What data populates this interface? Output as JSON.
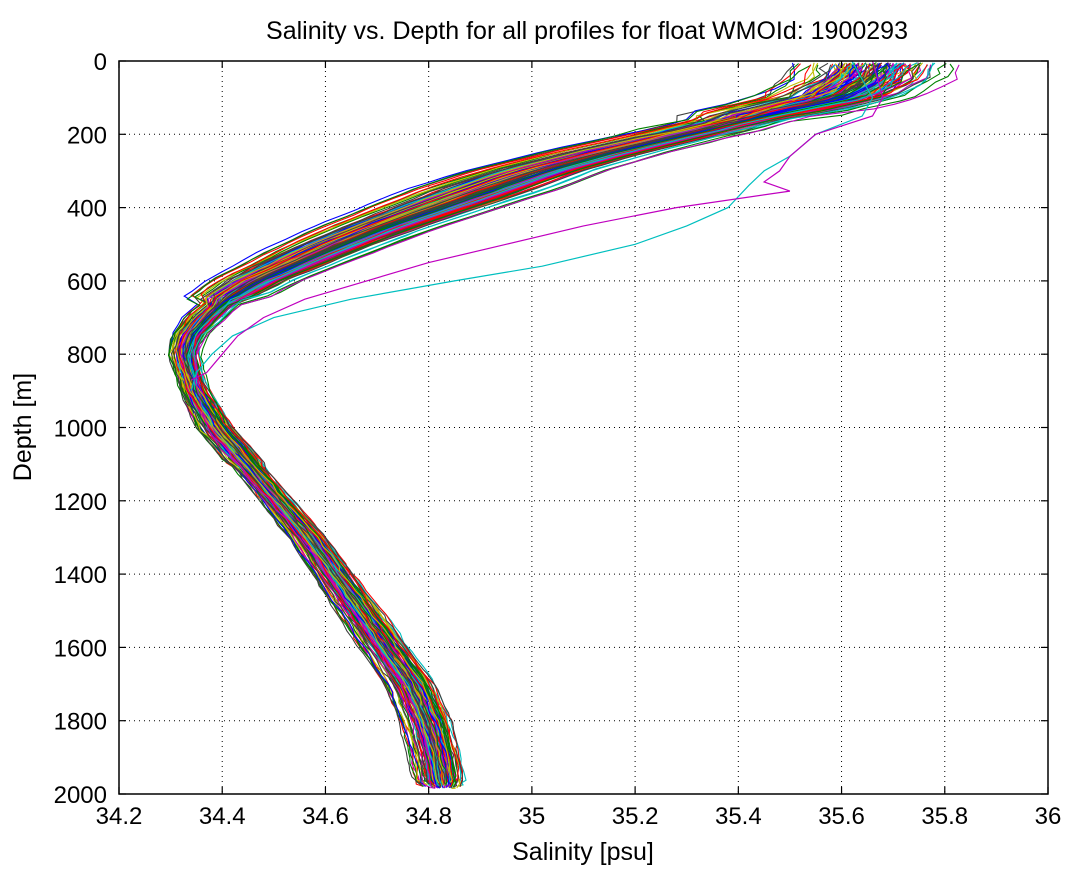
{
  "chart_data": {
    "type": "line",
    "title": "Salinity vs. Depth for all profiles for float WMOId: 1900293",
    "xlabel": "Salinity [psu]",
    "ylabel": "Depth [m]",
    "xlim": [
      34.2,
      36
    ],
    "ylim": [
      0,
      2000
    ],
    "y_reversed": true,
    "grid": true,
    "grid_style": "dotted",
    "x_ticks": [
      "34.2",
      "34.4",
      "34.6",
      "34.8",
      "35",
      "35.2",
      "35.4",
      "35.6",
      "35.8",
      "36"
    ],
    "y_ticks": [
      "0",
      "200",
      "400",
      "600",
      "800",
      "1000",
      "1200",
      "1400",
      "1600",
      "1800",
      "2000"
    ],
    "series_colors": [
      "#0000ff",
      "#008000",
      "#ff0000",
      "#00bfbf",
      "#bf00bf",
      "#bfbf00",
      "#404040"
    ],
    "profile_count": 140,
    "mean_profile": {
      "depth": [
        0,
        50,
        100,
        150,
        200,
        250,
        300,
        350,
        400,
        450,
        500,
        550,
        600,
        650,
        700,
        750,
        800,
        850,
        900,
        950,
        1000,
        1100,
        1200,
        1300,
        1400,
        1500,
        1600,
        1700,
        1800,
        1900,
        1980
      ],
      "salinity": [
        35.68,
        35.66,
        35.6,
        35.45,
        35.3,
        35.15,
        35.02,
        34.92,
        34.82,
        34.72,
        34.63,
        34.55,
        34.47,
        34.41,
        34.37,
        34.34,
        34.33,
        34.34,
        34.35,
        34.37,
        34.39,
        34.45,
        34.51,
        34.57,
        34.62,
        34.67,
        34.72,
        34.77,
        34.8,
        34.82,
        34.83
      ]
    },
    "outlier_profiles": [
      {
        "color": "#00bfbf",
        "depth": [
          0,
          100,
          150,
          200,
          260,
          300,
          340,
          400,
          450,
          500,
          560,
          600,
          650,
          700,
          750,
          800,
          850,
          900
        ],
        "salinity": [
          35.62,
          35.66,
          35.64,
          35.55,
          35.5,
          35.45,
          35.42,
          35.38,
          35.3,
          35.2,
          35.02,
          34.85,
          34.65,
          34.5,
          34.42,
          34.38,
          34.35,
          34.34
        ]
      },
      {
        "color": "#bf00bf",
        "depth": [
          0,
          100,
          150,
          200,
          260,
          300,
          330,
          355,
          400,
          450,
          500,
          550,
          600,
          650,
          700,
          750,
          800,
          850,
          870
        ],
        "salinity": [
          35.66,
          35.68,
          35.66,
          35.55,
          35.5,
          35.48,
          35.45,
          35.5,
          35.28,
          35.1,
          34.95,
          34.8,
          34.68,
          34.56,
          34.48,
          34.43,
          34.4,
          34.37,
          34.34
        ]
      }
    ]
  }
}
